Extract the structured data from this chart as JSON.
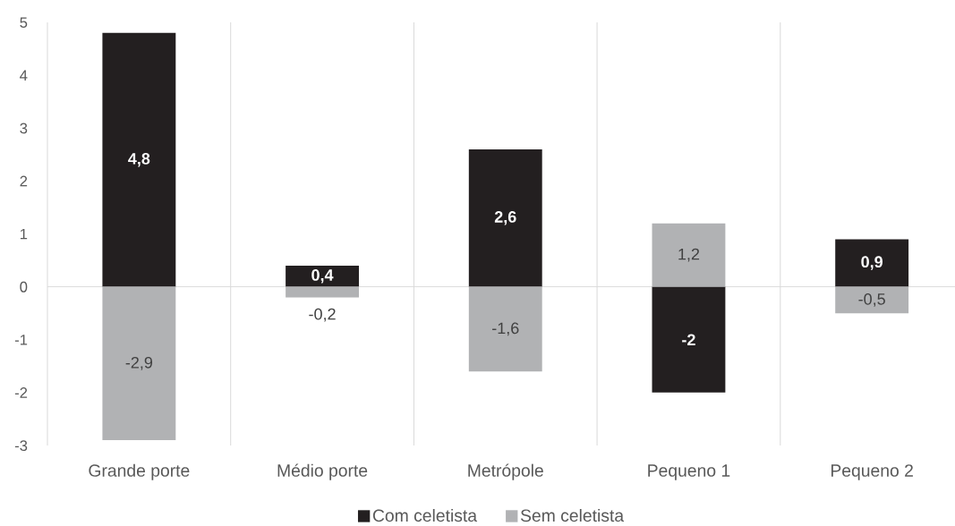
{
  "chart_data": {
    "type": "bar",
    "stacked": true,
    "categories": [
      "Grande porte",
      "Médio porte",
      "Metrópole",
      "Pequeno 1",
      "Pequeno 2"
    ],
    "series": [
      {
        "name": "Com celetista",
        "color": "#231f20",
        "values": [
          4.8,
          0.4,
          2.6,
          -2,
          0.9
        ],
        "value_labels": [
          "4,8",
          "0,4",
          "2,6",
          "-2",
          "0,9"
        ]
      },
      {
        "name": "Sem celetista",
        "color": "#b1b2b4",
        "values": [
          -2.9,
          -0.2,
          -1.6,
          1.2,
          -0.5
        ],
        "value_labels": [
          "-2,9",
          "-0,2",
          "-1,6",
          "1,2",
          "-0,5"
        ]
      }
    ],
    "ylim": [
      -3,
      5
    ],
    "yticks": [
      -3,
      -2,
      -1,
      0,
      1,
      2,
      3,
      4,
      5
    ],
    "grid": "x",
    "legend": "bottom",
    "ref_lines": [
      {
        "axis": "y",
        "value": 0,
        "color": "#d9d9d9"
      }
    ]
  }
}
